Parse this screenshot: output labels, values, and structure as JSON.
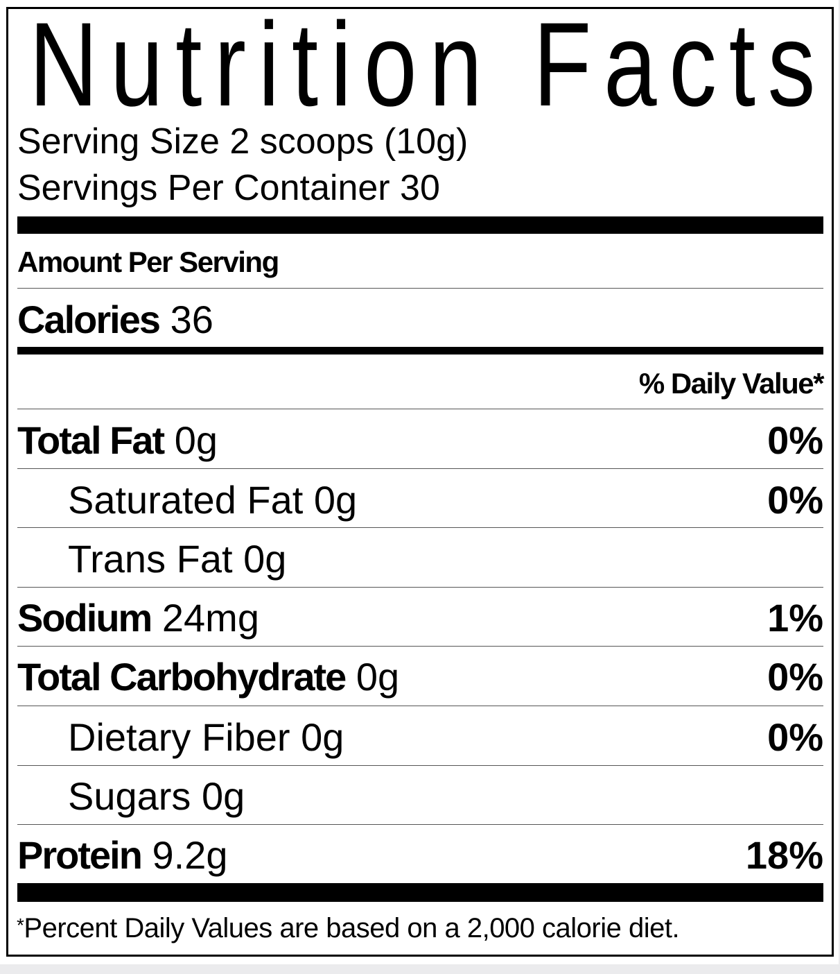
{
  "title": "Nutrition Facts",
  "serving_size": "Serving Size 2 scoops (10g)",
  "servings_per_container": "Servings Per Container 30",
  "amount_per_serving": "Amount Per Serving",
  "calories": {
    "label": "Calories",
    "value": "36"
  },
  "daily_value_header": "% Daily Value*",
  "nutrients": [
    {
      "label": "Total Fat",
      "amount": "0g",
      "dv": "0%"
    },
    {
      "label": "Saturated Fat",
      "amount": "0g",
      "dv": "0%"
    },
    {
      "label": "Trans Fat",
      "amount": "0g",
      "dv": ""
    },
    {
      "label": "Sodium",
      "amount": "24mg",
      "dv": "1%"
    },
    {
      "label": "Total Carbohydrate",
      "amount": "0g",
      "dv": "0%"
    },
    {
      "label": "Dietary Fiber",
      "amount": "0g",
      "dv": "0%"
    },
    {
      "label": "Sugars",
      "amount": "0g",
      "dv": ""
    },
    {
      "label": "Protein",
      "amount": "9.2g",
      "dv": "18%"
    }
  ],
  "footnote_mark": "*",
  "footnote": "Percent Daily Values are based on a 2,000 calorie diet."
}
